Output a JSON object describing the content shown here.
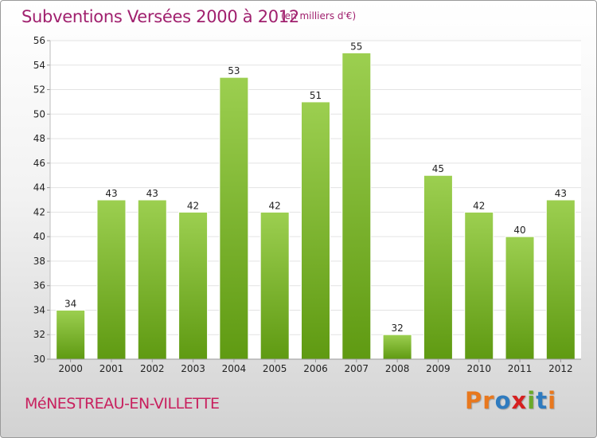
{
  "header": {
    "title": "Subventions Versées 2000 à 2012",
    "unit_note": "(en milliers d'€)"
  },
  "footer": {
    "commune": "MéNESTREAU-EN-VILLETTE",
    "logo_text": "Proxiti",
    "logo_colors": [
      "#e8781e",
      "#e8781e",
      "#2f7bbf",
      "#d62020",
      "#6aaa2a",
      "#2f7bbf",
      "#e8781e"
    ]
  },
  "colors": {
    "title": "#a0206e",
    "bar_light": "#9ccf50",
    "bar_dark": "#5f9a12",
    "grid": "#e3e3e3",
    "axis_text": "#222222"
  },
  "chart_data": {
    "type": "bar",
    "title": "Subventions Versées 2000 à 2012",
    "subtitle": "(en milliers d'€)",
    "xlabel": "",
    "ylabel": "",
    "categories": [
      "2000",
      "2001",
      "2002",
      "2003",
      "2004",
      "2005",
      "2006",
      "2007",
      "2008",
      "2009",
      "2010",
      "2011",
      "2012"
    ],
    "values": [
      34,
      43,
      43,
      42,
      53,
      42,
      51,
      55,
      32,
      45,
      42,
      40,
      43
    ],
    "ylim": [
      30,
      56
    ],
    "yticks": [
      30,
      32,
      34,
      36,
      38,
      40,
      42,
      44,
      46,
      48,
      50,
      52,
      54,
      56
    ],
    "grid": true,
    "legend": "none",
    "data_labels": true
  }
}
